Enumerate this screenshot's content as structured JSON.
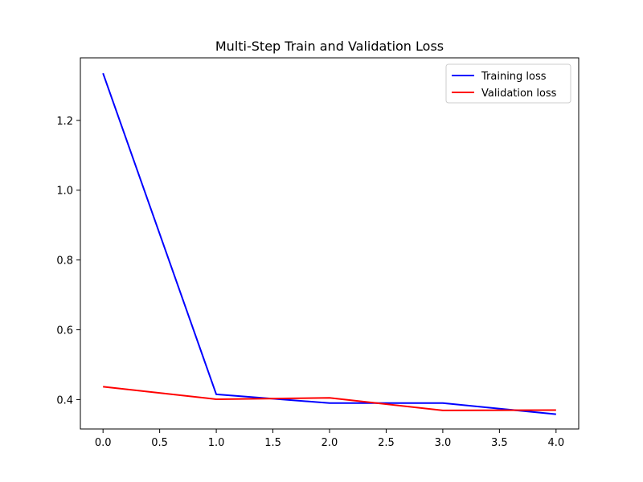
{
  "chart_data": {
    "type": "line",
    "title": "Multi-Step Train and Validation Loss",
    "xlabel": "",
    "ylabel": "",
    "xlim": [
      -0.2,
      4.2
    ],
    "ylim": [
      0.3158,
      1.3792
    ],
    "x_ticks": [
      0.0,
      0.5,
      1.0,
      1.5,
      2.0,
      2.5,
      3.0,
      3.5,
      4.0
    ],
    "x_tick_labels": [
      "0.0",
      "0.5",
      "1.0",
      "1.5",
      "2.0",
      "2.5",
      "3.0",
      "3.5",
      "4.0"
    ],
    "y_ticks": [
      0.4,
      0.6,
      0.8,
      1.0,
      1.2
    ],
    "y_tick_labels": [
      "0.4",
      "0.6",
      "0.8",
      "1.0",
      "1.2"
    ],
    "x": [
      0,
      1,
      2,
      3,
      4
    ],
    "series": [
      {
        "name": "Training loss",
        "color": "#0000ff",
        "values": [
          1.335,
          0.415,
          0.39,
          0.39,
          0.358
        ]
      },
      {
        "name": "Validation loss",
        "color": "#ff0000",
        "values": [
          0.437,
          0.401,
          0.405,
          0.369,
          0.37
        ]
      }
    ],
    "grid": false,
    "legend_position": "top-right"
  }
}
